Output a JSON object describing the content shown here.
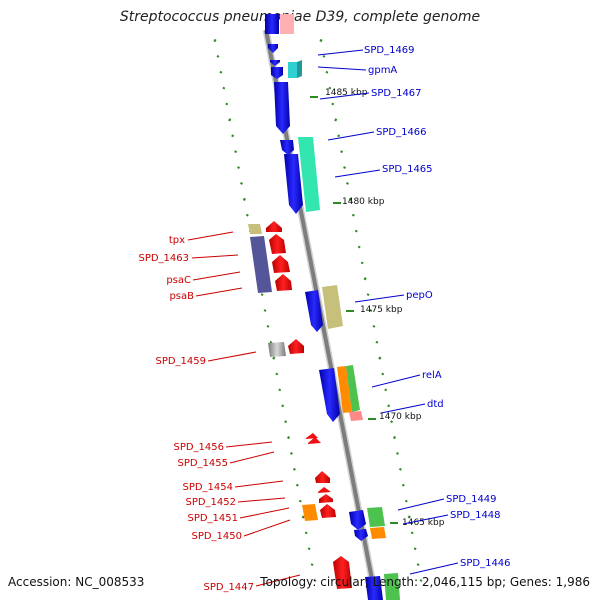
{
  "title": "Streptococcus pneumoniae D39, complete genome",
  "footer": {
    "accession_label": "Accession:",
    "accession": "NC_008533",
    "topology_label": "Topology:",
    "topology": "circular",
    "length_label": "Length:",
    "length": "2,046,115 bp",
    "genes_label": "Genes:",
    "genes": "1,986"
  },
  "colors": {
    "forward_label": "#0000cc",
    "reverse_label": "#cc0000",
    "backbone": "#888888",
    "tick": "#2e8b22"
  },
  "kbp_markers": [
    "1485 kbp",
    "1480 kbp",
    "1475 kbp",
    "1470 kbp",
    "1465 kbp"
  ],
  "forward_labels": [
    "SPD_1469",
    "gpmA",
    "SPD_1467",
    "SPD_1466",
    "SPD_1465",
    "pepO",
    "relA",
    "dtd",
    "SPD_1449",
    "SPD_1448",
    "SPD_1446"
  ],
  "reverse_labels": [
    "tpx",
    "SPD_1463",
    "psaC",
    "psaB",
    "SPD_1459",
    "SPD_1456",
    "SPD_1455",
    "SPD_1454",
    "SPD_1452",
    "SPD_1451",
    "SPD_1450",
    "SPD_1447"
  ]
}
